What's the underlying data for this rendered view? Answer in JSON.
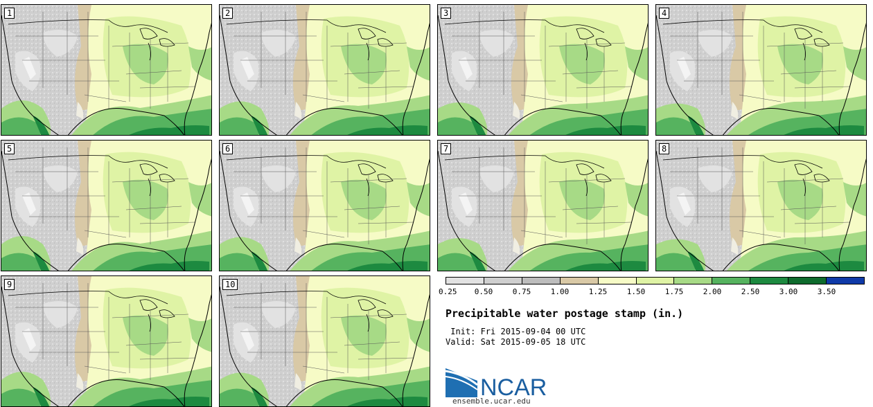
{
  "panels": [
    "1",
    "2",
    "3",
    "4",
    "5",
    "6",
    "7",
    "8",
    "9",
    "10"
  ],
  "colorbar": {
    "colors": [
      "#e2e2e2",
      "#cfcfcf",
      "#bdbdbd",
      "#d9c9a6",
      "#f6fbc6",
      "#dff3a5",
      "#a7da86",
      "#56b35f",
      "#1d8a40",
      "#0e6b2d",
      "#0f3aa8"
    ],
    "ticks": [
      "0.25",
      "0.50",
      "0.75",
      "1.00",
      "1.25",
      "1.50",
      "1.75",
      "2.00",
      "2.50",
      "3.00",
      "3.50"
    ]
  },
  "title": "Precipitable water postage stamp (in.)",
  "init_line": " Init: Fri 2015-09-04 00 UTC",
  "valid_line": "Valid: Sat 2015-09-05 18 UTC",
  "logo": {
    "text": "NCAR",
    "url": "ensemble.ucar.edu"
  }
}
